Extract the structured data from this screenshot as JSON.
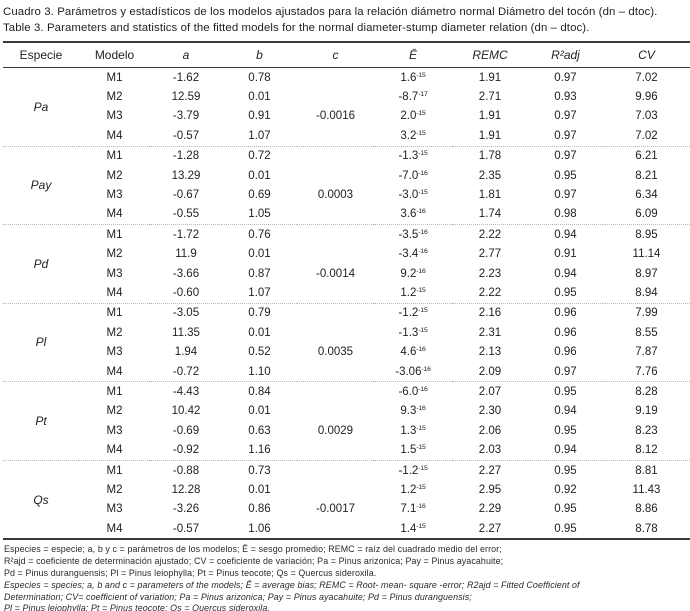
{
  "caption_es": "Cuadro 3. Parámetros y estadísticos de los modelos ajustados para la relación diámetro normal Diámetro del tocón (dn – dtoc).",
  "caption_en": "Table 3. Parameters and statistics of the fitted models for the normal diameter-stump diameter relation (dn – dtoc).",
  "table": {
    "headers": [
      "Especie",
      "Modelo",
      "a",
      "b",
      "c",
      "Ē",
      "REMC",
      "R²adj",
      "CV"
    ],
    "groups": [
      {
        "species": "Pa",
        "rows": [
          {
            "model": "M1",
            "a": "-1.62",
            "b": "0.78",
            "c": "",
            "e": "1.6",
            "e_exp": "-15",
            "remc": "1.91",
            "r2adj": "0.97",
            "cv": "7.02"
          },
          {
            "model": "M2",
            "a": "12.59",
            "b": "0.01",
            "c": "",
            "e": "-8.7",
            "e_exp": "-17",
            "remc": "2.71",
            "r2adj": "0.93",
            "cv": "9.96"
          },
          {
            "model": "M3",
            "a": "-3.79",
            "b": "0.91",
            "c": "-0.0016",
            "e": "2.0",
            "e_exp": "-15",
            "remc": "1.91",
            "r2adj": "0.97",
            "cv": "7.03"
          },
          {
            "model": "M4",
            "a": "-0.57",
            "b": "1.07",
            "c": "",
            "e": "3.2",
            "e_exp": "-15",
            "remc": "1.91",
            "r2adj": "0.97",
            "cv": "7.02"
          }
        ]
      },
      {
        "species": "Pay",
        "rows": [
          {
            "model": "M1",
            "a": "-1.28",
            "b": "0.72",
            "c": "",
            "e": "-1.3",
            "e_exp": "-15",
            "remc": "1.78",
            "r2adj": "0.97",
            "cv": "6.21"
          },
          {
            "model": "M2",
            "a": "13.29",
            "b": "0.01",
            "c": "",
            "e": "-7.0",
            "e_exp": "-16",
            "remc": "2.35",
            "r2adj": "0.95",
            "cv": "8.21"
          },
          {
            "model": "M3",
            "a": "-0.67",
            "b": "0.69",
            "c": "0.0003",
            "e": "-3.0",
            "e_exp": "-15",
            "remc": "1.81",
            "r2adj": "0.97",
            "cv": "6.34"
          },
          {
            "model": "M4",
            "a": "-0.55",
            "b": "1.05",
            "c": "",
            "e": "3.6",
            "e_exp": "-16",
            "remc": "1.74",
            "r2adj": "0.98",
            "cv": "6.09"
          }
        ]
      },
      {
        "species": "Pd",
        "rows": [
          {
            "model": "M1",
            "a": "-1.72",
            "b": "0.76",
            "c": "",
            "e": "-3.5",
            "e_exp": "-16",
            "remc": "2.22",
            "r2adj": "0.94",
            "cv": "8.95"
          },
          {
            "model": "M2",
            "a": "11.9",
            "b": "0.01",
            "c": "",
            "e": "-3.4",
            "e_exp": "-16",
            "remc": "2.77",
            "r2adj": "0.91",
            "cv": "11.14"
          },
          {
            "model": "M3",
            "a": "-3.66",
            "b": "0.87",
            "c": "-0.0014",
            "e": "9.2",
            "e_exp": "-16",
            "remc": "2.23",
            "r2adj": "0.94",
            "cv": "8.97"
          },
          {
            "model": "M4",
            "a": "-0.60",
            "b": "1.07",
            "c": "",
            "e": "1.2",
            "e_exp": "-15",
            "remc": "2.22",
            "r2adj": "0.95",
            "cv": "8.94"
          }
        ]
      },
      {
        "species": "Pl",
        "rows": [
          {
            "model": "M1",
            "a": "-3.05",
            "b": "0.79",
            "c": "",
            "e": "-1.2",
            "e_exp": "-15",
            "remc": "2.16",
            "r2adj": "0.96",
            "cv": "7.99"
          },
          {
            "model": "M2",
            "a": "11.35",
            "b": "0.01",
            "c": "",
            "e": "-1.3",
            "e_exp": "-15",
            "remc": "2.31",
            "r2adj": "0.96",
            "cv": "8.55"
          },
          {
            "model": "M3",
            "a": "1.94",
            "b": "0.52",
            "c": "0.0035",
            "e": "4.6",
            "e_exp": "-16",
            "remc": "2.13",
            "r2adj": "0.96",
            "cv": "7.87"
          },
          {
            "model": "M4",
            "a": "-0.72",
            "b": "1.10",
            "c": "",
            "e": "-3.06",
            "e_exp": "-16",
            "remc": "2.09",
            "r2adj": "0.97",
            "cv": "7.76"
          }
        ]
      },
      {
        "species": "Pt",
        "rows": [
          {
            "model": "M1",
            "a": "-4.43",
            "b": "0.84",
            "c": "",
            "e": "-6.0",
            "e_exp": "-16",
            "remc": "2.07",
            "r2adj": "0.95",
            "cv": "8.28"
          },
          {
            "model": "M2",
            "a": "10.42",
            "b": "0.01",
            "c": "",
            "e": "9.3",
            "e_exp": "-16",
            "remc": "2.30",
            "r2adj": "0.94",
            "cv": "9.19"
          },
          {
            "model": "M3",
            "a": "-0.69",
            "b": "0.63",
            "c": "0.0029",
            "e": "1.3",
            "e_exp": "-15",
            "remc": "2.06",
            "r2adj": "0.95",
            "cv": "8.23"
          },
          {
            "model": "M4",
            "a": "-0.92",
            "b": "1.16",
            "c": "",
            "e": "1.5",
            "e_exp": "-15",
            "remc": "2.03",
            "r2adj": "0.94",
            "cv": "8.12"
          }
        ]
      },
      {
        "species": "Qs",
        "rows": [
          {
            "model": "M1",
            "a": "-0.88",
            "b": "0.73",
            "c": "",
            "e": "-1.2",
            "e_exp": "-15",
            "remc": "2.27",
            "r2adj": "0.95",
            "cv": "8.81"
          },
          {
            "model": "M2",
            "a": "12.28",
            "b": "0.01",
            "c": "",
            "e": "1.2",
            "e_exp": "-15",
            "remc": "2.95",
            "r2adj": "0.92",
            "cv": "11.43"
          },
          {
            "model": "M3",
            "a": "-3.26",
            "b": "0.86",
            "c": "-0.0017",
            "e": "7.1",
            "e_exp": "-16",
            "remc": "2.29",
            "r2adj": "0.95",
            "cv": "8.86"
          },
          {
            "model": "M4",
            "a": "-0.57",
            "b": "1.06",
            "c": "",
            "e": "1.4",
            "e_exp": "-15",
            "remc": "2.27",
            "r2adj": "0.95",
            "cv": "8.78"
          }
        ]
      }
    ]
  },
  "footnotes": [
    "Especies = especie; a, b y c = parámetros de los modelos; Ē = sesgo promedio; REMC = raíz del cuadrado medio del error;",
    "R²ajd = coeficiente de determinación ajustado; CV = coeficiente de variación; Pa = Pinus arizonica; Pay = Pinus ayacahuite;",
    "Pd = Pinus duranguensis; Pl = Pinus leiophylla; Pt = Pinus teocote; Qs = Quercus sideroxila.",
    "Especies = species; a, b and c = parameters of the models; Ē = average bias; REMC = Root- mean- square -error; R2ajd = Fitted Coefficient of",
    "Determination; CV= coefficient of variation; Pa = Pinus arizonica; Pay = Pinus ayacahuite; Pd = Pinus duranguensis;",
    "Pl = Pinus leiophylla; Pt = Pinus teocote; Qs = Quercus sideroxila."
  ]
}
